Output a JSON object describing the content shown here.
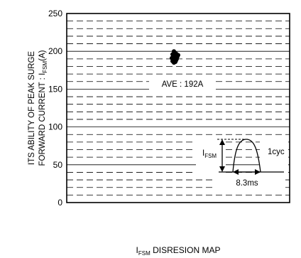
{
  "chart_data": {
    "type": "scatter",
    "title": "",
    "caption": {
      "prefix": "I",
      "subscript": "FSM",
      "text": " DISRESION MAP"
    },
    "ylabel": {
      "line1": "ITS ABILITY OF PEAK SURGE",
      "line2_prefix": "FORWARD CURRENT : I",
      "line2_subscript": "FSM",
      "line2_suffix": "(A)"
    },
    "ylim": [
      0,
      250
    ],
    "yticks": [
      0,
      50,
      100,
      150,
      200,
      250
    ],
    "grid": {
      "solid_every": 50,
      "dashed_every": 10
    },
    "points": [
      {
        "y": 200
      },
      {
        "y": 197
      },
      {
        "y": 196
      },
      {
        "y": 195
      },
      {
        "y": 195
      },
      {
        "y": 194
      },
      {
        "y": 193
      },
      {
        "y": 192
      },
      {
        "y": 191
      },
      {
        "y": 190
      },
      {
        "y": 189
      },
      {
        "y": 188
      },
      {
        "y": 187
      },
      {
        "y": 186
      },
      {
        "y": 185
      }
    ],
    "average_label": "AVE : 192A",
    "inset": {
      "ifsm_prefix": "I",
      "ifsm_subscript": "FSM",
      "cycle_label": "1cyc",
      "duration_label": "8.3ms"
    }
  }
}
